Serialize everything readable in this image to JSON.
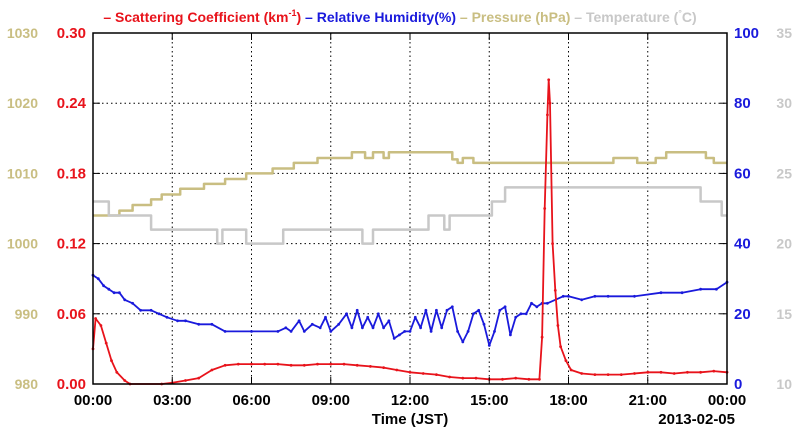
{
  "chart_data": {
    "type": "line",
    "legend": {
      "placement": "top",
      "entries": [
        {
          "text": "– Scattering Coefficient (km",
          "sup": "-1",
          "tail": ")",
          "color": "#e8131b"
        },
        {
          "text": "– Relative Humidity(%)",
          "color": "#1a1adc"
        },
        {
          "text": "– Pressure (hPa)",
          "color": "#c9be82"
        },
        {
          "text": "– Temperature (",
          "sup": "°",
          "tail": "C)",
          "color": "#c8c8c8"
        }
      ]
    },
    "xlabel": "Time (JST)",
    "date_label": "2013-02-05",
    "x_ticks": [
      "00:00",
      "03:00",
      "06:00",
      "09:00",
      "12:00",
      "15:00",
      "18:00",
      "21:00",
      "00:00"
    ],
    "grid": true,
    "axes": {
      "scattering": {
        "range": [
          0,
          0.3
        ],
        "ticks": [
          "0.00",
          "0.06",
          "0.12",
          "0.18",
          "0.24",
          "0.30"
        ],
        "color": "#e8131b"
      },
      "pressure": {
        "range": [
          980,
          1030
        ],
        "ticks": [
          "980",
          "990",
          "1000",
          "1010",
          "1020",
          "1030"
        ],
        "color": "#c9be82"
      },
      "humidity": {
        "range": [
          0,
          100
        ],
        "ticks": [
          "0",
          "20",
          "40",
          "60",
          "80",
          "100"
        ],
        "color": "#1a1adc"
      },
      "temperature": {
        "range": [
          10,
          35
        ],
        "ticks": [
          "10",
          "15",
          "20",
          "25",
          "30",
          "35"
        ],
        "color": "#c8c8c8"
      }
    },
    "series": [
      {
        "axis": "pressure",
        "color": "#c9be82",
        "points": [
          [
            0,
            1004
          ],
          [
            1.0,
            1004
          ],
          [
            1.0,
            1004.7
          ],
          [
            1.5,
            1004.7
          ],
          [
            1.5,
            1005.5
          ],
          [
            2.2,
            1005.5
          ],
          [
            2.2,
            1006.3
          ],
          [
            2.6,
            1006.3
          ],
          [
            2.6,
            1007
          ],
          [
            3.3,
            1007
          ],
          [
            3.3,
            1007.8
          ],
          [
            4.2,
            1007.8
          ],
          [
            4.2,
            1008.5
          ],
          [
            5.0,
            1008.5
          ],
          [
            5.0,
            1009.2
          ],
          [
            5.8,
            1009.2
          ],
          [
            5.8,
            1010
          ],
          [
            6.8,
            1010
          ],
          [
            6.8,
            1010.7
          ],
          [
            7.6,
            1010.7
          ],
          [
            7.6,
            1011.5
          ],
          [
            8.5,
            1011.5
          ],
          [
            8.5,
            1012.2
          ],
          [
            9.8,
            1012.2
          ],
          [
            9.8,
            1013.0
          ],
          [
            10.3,
            1013.0
          ],
          [
            10.3,
            1012.2
          ],
          [
            10.6,
            1012.2
          ],
          [
            10.6,
            1013.0
          ],
          [
            11.0,
            1013.0
          ],
          [
            11.0,
            1012.2
          ],
          [
            11.2,
            1012.2
          ],
          [
            11.2,
            1013.0
          ],
          [
            13.6,
            1013.0
          ],
          [
            13.6,
            1012.0
          ],
          [
            13.8,
            1012.0
          ],
          [
            13.8,
            1011.5
          ],
          [
            14.0,
            1011.5
          ],
          [
            14.0,
            1012.2
          ],
          [
            14.4,
            1012.2
          ],
          [
            14.4,
            1011.5
          ],
          [
            19.7,
            1011.5
          ],
          [
            19.7,
            1012.2
          ],
          [
            20.6,
            1012.2
          ],
          [
            20.6,
            1011.5
          ],
          [
            21.3,
            1011.5
          ],
          [
            21.3,
            1012.2
          ],
          [
            21.7,
            1012.2
          ],
          [
            21.7,
            1013.0
          ],
          [
            23.2,
            1013.0
          ],
          [
            23.2,
            1012.2
          ],
          [
            23.5,
            1012.2
          ],
          [
            23.5,
            1011.5
          ],
          [
            24,
            1011.5
          ]
        ]
      },
      {
        "axis": "temperature",
        "color": "#c8c8c8",
        "points": [
          [
            0,
            23
          ],
          [
            0.6,
            23
          ],
          [
            0.6,
            22
          ],
          [
            2.2,
            22
          ],
          [
            2.2,
            21
          ],
          [
            4.7,
            21
          ],
          [
            4.7,
            20
          ],
          [
            4.9,
            20
          ],
          [
            4.9,
            21
          ],
          [
            5.8,
            21
          ],
          [
            5.8,
            20
          ],
          [
            7.2,
            20
          ],
          [
            7.2,
            21
          ],
          [
            10.2,
            21
          ],
          [
            10.2,
            20
          ],
          [
            10.6,
            20
          ],
          [
            10.6,
            21
          ],
          [
            12.7,
            21
          ],
          [
            12.7,
            22
          ],
          [
            13.3,
            22
          ],
          [
            13.3,
            21
          ],
          [
            13.5,
            21
          ],
          [
            13.5,
            22
          ],
          [
            15.1,
            22
          ],
          [
            15.1,
            23
          ],
          [
            15.6,
            23
          ],
          [
            15.6,
            24
          ],
          [
            23.0,
            24
          ],
          [
            23.0,
            23
          ],
          [
            23.8,
            23
          ],
          [
            23.8,
            22
          ],
          [
            24,
            22
          ]
        ]
      },
      {
        "axis": "humidity",
        "color": "#1a1adc",
        "points": [
          [
            0,
            31
          ],
          [
            0.2,
            30
          ],
          [
            0.4,
            28
          ],
          [
            0.6,
            27
          ],
          [
            0.8,
            26
          ],
          [
            1.0,
            26
          ],
          [
            1.2,
            24
          ],
          [
            1.5,
            23
          ],
          [
            1.8,
            21
          ],
          [
            2.2,
            21
          ],
          [
            2.5,
            20
          ],
          [
            2.8,
            19
          ],
          [
            3.2,
            18
          ],
          [
            3.5,
            18
          ],
          [
            4.0,
            17
          ],
          [
            4.5,
            17
          ],
          [
            5.0,
            15
          ],
          [
            6.0,
            15
          ],
          [
            7.0,
            15
          ],
          [
            7.3,
            16
          ],
          [
            7.5,
            15
          ],
          [
            7.8,
            18
          ],
          [
            8.0,
            15
          ],
          [
            8.3,
            17
          ],
          [
            8.6,
            16
          ],
          [
            8.8,
            19
          ],
          [
            9.0,
            15
          ],
          [
            9.3,
            17
          ],
          [
            9.6,
            20
          ],
          [
            9.8,
            16
          ],
          [
            10.0,
            21
          ],
          [
            10.2,
            16
          ],
          [
            10.4,
            19
          ],
          [
            10.6,
            16
          ],
          [
            10.8,
            20
          ],
          [
            11.0,
            16
          ],
          [
            11.2,
            18
          ],
          [
            11.4,
            13
          ],
          [
            11.6,
            14
          ],
          [
            11.8,
            15
          ],
          [
            12.0,
            15
          ],
          [
            12.2,
            19
          ],
          [
            12.4,
            16
          ],
          [
            12.6,
            21
          ],
          [
            12.8,
            15
          ],
          [
            13.0,
            21
          ],
          [
            13.2,
            16
          ],
          [
            13.4,
            21
          ],
          [
            13.6,
            22
          ],
          [
            13.8,
            15
          ],
          [
            14.0,
            12
          ],
          [
            14.2,
            15
          ],
          [
            14.4,
            20
          ],
          [
            14.6,
            21
          ],
          [
            14.8,
            17
          ],
          [
            15.0,
            11
          ],
          [
            15.2,
            15
          ],
          [
            15.4,
            21
          ],
          [
            15.6,
            22
          ],
          [
            15.8,
            14
          ],
          [
            16.0,
            19
          ],
          [
            16.2,
            20
          ],
          [
            16.4,
            20
          ],
          [
            16.6,
            23
          ],
          [
            16.8,
            22
          ],
          [
            17.0,
            23
          ],
          [
            17.2,
            23
          ],
          [
            17.8,
            25
          ],
          [
            18.0,
            25
          ],
          [
            18.5,
            24
          ],
          [
            19.0,
            25
          ],
          [
            19.5,
            25
          ],
          [
            20.5,
            25
          ],
          [
            21.5,
            26
          ],
          [
            22.3,
            26
          ],
          [
            23.0,
            27
          ],
          [
            23.6,
            27
          ],
          [
            24.0,
            29
          ]
        ]
      },
      {
        "axis": "scattering",
        "color": "#e8131b",
        "points": [
          [
            0,
            0.03
          ],
          [
            0.1,
            0.056
          ],
          [
            0.3,
            0.05
          ],
          [
            0.5,
            0.035
          ],
          [
            0.7,
            0.02
          ],
          [
            0.9,
            0.01
          ],
          [
            1.2,
            0.003
          ],
          [
            1.4,
            0.0
          ],
          [
            2.6,
            0.0
          ],
          [
            3.0,
            0.001
          ],
          [
            3.5,
            0.003
          ],
          [
            4.0,
            0.005
          ],
          [
            4.5,
            0.012
          ],
          [
            5.0,
            0.016
          ],
          [
            5.5,
            0.017
          ],
          [
            6.0,
            0.017
          ],
          [
            6.5,
            0.017
          ],
          [
            7.0,
            0.017
          ],
          [
            7.5,
            0.016
          ],
          [
            8.0,
            0.016
          ],
          [
            8.5,
            0.017
          ],
          [
            9.0,
            0.017
          ],
          [
            9.5,
            0.017
          ],
          [
            10.0,
            0.016
          ],
          [
            10.5,
            0.015
          ],
          [
            11.0,
            0.014
          ],
          [
            11.5,
            0.012
          ],
          [
            12.0,
            0.01
          ],
          [
            12.5,
            0.009
          ],
          [
            13.0,
            0.008
          ],
          [
            13.5,
            0.006
          ],
          [
            14.0,
            0.005
          ],
          [
            14.5,
            0.005
          ],
          [
            15.0,
            0.004
          ],
          [
            15.5,
            0.004
          ],
          [
            16.0,
            0.005
          ],
          [
            16.5,
            0.004
          ],
          [
            16.9,
            0.004
          ],
          [
            17.0,
            0.04
          ],
          [
            17.1,
            0.15
          ],
          [
            17.2,
            0.23
          ],
          [
            17.25,
            0.26
          ],
          [
            17.3,
            0.24
          ],
          [
            17.4,
            0.12
          ],
          [
            17.5,
            0.08
          ],
          [
            17.6,
            0.05
          ],
          [
            17.7,
            0.032
          ],
          [
            17.9,
            0.02
          ],
          [
            18.1,
            0.012
          ],
          [
            18.5,
            0.009
          ],
          [
            19.0,
            0.008
          ],
          [
            19.5,
            0.008
          ],
          [
            20.0,
            0.008
          ],
          [
            20.5,
            0.009
          ],
          [
            21.0,
            0.01
          ],
          [
            21.5,
            0.01
          ],
          [
            22.0,
            0.009
          ],
          [
            22.5,
            0.01
          ],
          [
            23.0,
            0.01
          ],
          [
            23.5,
            0.011
          ],
          [
            24.0,
            0.01
          ]
        ]
      }
    ]
  }
}
